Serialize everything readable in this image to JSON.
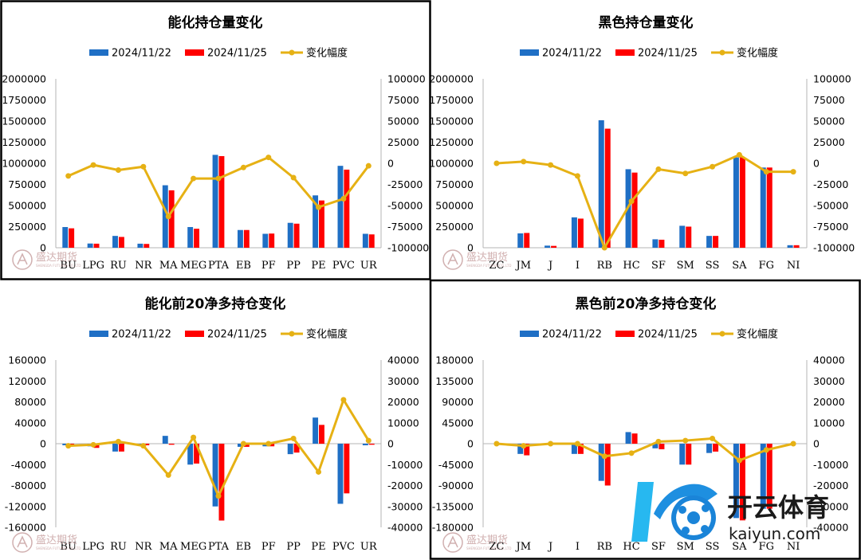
{
  "colors": {
    "series1": "#1f6fc5",
    "series2": "#ff0000",
    "line": "#e6b114"
  },
  "watermark": {
    "text": "盛达期货",
    "sub": "SHENGDA FUTURES CO.,LTD"
  },
  "brand": {
    "name": "开云体育",
    "url": "kaiyun.com"
  },
  "chart_data": [
    {
      "type": "bar",
      "title": "能化持仓量变化",
      "categories": [
        "BU",
        "LPG",
        "RU",
        "NR",
        "MA",
        "MEG",
        "PTA",
        "EB",
        "PF",
        "PP",
        "PE",
        "PVC",
        "UR"
      ],
      "series": [
        {
          "name": "2024/11/22",
          "axis": "left",
          "values": [
            245000,
            50000,
            140000,
            48000,
            740000,
            245000,
            1100000,
            210000,
            165000,
            295000,
            620000,
            970000,
            165000
          ]
        },
        {
          "name": "2024/11/25",
          "axis": "left",
          "values": [
            230000,
            48000,
            128000,
            45000,
            680000,
            225000,
            1085000,
            210000,
            168000,
            285000,
            560000,
            925000,
            158000
          ]
        },
        {
          "name": "变化幅度",
          "axis": "right",
          "type": "line",
          "values": [
            -15000,
            -2000,
            -8000,
            -4000,
            -63000,
            -18000,
            -18000,
            -5000,
            7000,
            -17000,
            -52000,
            -42000,
            -3000
          ]
        }
      ],
      "y_ticks": [
        "2000000",
        "1750000",
        "1500000",
        "1250000",
        "1000000",
        "750000",
        "500000",
        "250000",
        "0"
      ],
      "y2_ticks": [
        "100000",
        "75000",
        "50000",
        "25000",
        "0",
        "-25000",
        "-50000",
        "-75000",
        "-100000"
      ],
      "ylim": [
        0,
        2000000
      ],
      "y2lim": [
        -100000,
        100000
      ],
      "legend": "top"
    },
    {
      "type": "bar",
      "title": "黑色持仓量变化",
      "categories": [
        "ZC",
        "JM",
        "J",
        "I",
        "RB",
        "HC",
        "SF",
        "SM",
        "SS",
        "SA",
        "FG",
        "NI"
      ],
      "series": [
        {
          "name": "2024/11/22",
          "axis": "left",
          "values": [
            0,
            170000,
            25000,
            360000,
            1510000,
            930000,
            100000,
            260000,
            140000,
            1070000,
            950000,
            30000
          ]
        },
        {
          "name": "2024/11/25",
          "axis": "left",
          "values": [
            0,
            175000,
            22000,
            345000,
            1410000,
            890000,
            95000,
            250000,
            140000,
            1070000,
            950000,
            30000
          ]
        },
        {
          "name": "变化幅度",
          "axis": "right",
          "type": "line",
          "values": [
            0,
            2000,
            -2000,
            -15000,
            -100000,
            -45000,
            -7000,
            -12000,
            -4000,
            10000,
            -10000,
            -10000
          ]
        }
      ],
      "y_ticks": [
        "2000000",
        "1750000",
        "1500000",
        "1250000",
        "1000000",
        "750000",
        "500000",
        "250000",
        "0"
      ],
      "y2_ticks": [
        "100000",
        "75000",
        "50000",
        "25000",
        "0",
        "-25000",
        "-50000",
        "-75000",
        "-100000"
      ],
      "ylim": [
        0,
        2000000
      ],
      "y2lim": [
        -100000,
        100000
      ],
      "legend": "top"
    },
    {
      "type": "bar",
      "title": "能化前20净多持仓变化",
      "categories": [
        "BU",
        "LPG",
        "RU",
        "NR",
        "MA",
        "MEG",
        "PTA",
        "EB",
        "PF",
        "PP",
        "PE",
        "PVC",
        "UR"
      ],
      "series": [
        {
          "name": "2024/11/22",
          "axis": "left",
          "values": [
            -3000,
            -5000,
            -15000,
            -3000,
            15000,
            -40000,
            -120000,
            -6000,
            -5000,
            -20000,
            50000,
            -115000,
            -3000
          ]
        },
        {
          "name": "2024/11/25",
          "axis": "left",
          "values": [
            -5000,
            -8000,
            -15000,
            -3000,
            -2000,
            -38000,
            -147000,
            -6000,
            -5000,
            -17000,
            36000,
            -95000,
            -2000
          ]
        },
        {
          "name": "变化幅度",
          "axis": "right",
          "type": "line",
          "values": [
            -1000,
            -500,
            1000,
            -1000,
            -15000,
            3000,
            -25000,
            0,
            0,
            2500,
            -13500,
            21000,
            1500
          ]
        }
      ],
      "y_ticks": [
        "160000",
        "120000",
        "80000",
        "40000",
        "0",
        "-40000",
        "-80000",
        "-120000",
        "-160000"
      ],
      "y2_ticks": [
        "40000",
        "30000",
        "20000",
        "10000",
        "0",
        "-10000",
        "-20000",
        "-30000",
        "-40000"
      ],
      "ylim": [
        -160000,
        160000
      ],
      "y2lim": [
        -40000,
        40000
      ],
      "legend": "top"
    },
    {
      "type": "bar",
      "title": "黑色前20净多持仓变化",
      "categories": [
        "ZC",
        "JM",
        "J",
        "I",
        "RB",
        "HC",
        "SF",
        "SM",
        "SS",
        "SA",
        "FG",
        "NI"
      ],
      "series": [
        {
          "name": "2024/11/22",
          "axis": "left",
          "values": [
            0,
            -22000,
            0,
            -22000,
            -80000,
            25000,
            -10000,
            -45000,
            -20000,
            -160000,
            -140000,
            0
          ]
        },
        {
          "name": "2024/11/25",
          "axis": "left",
          "values": [
            0,
            -25000,
            0,
            -22000,
            -90000,
            22000,
            -12000,
            -45000,
            -17000,
            -165000,
            -140000,
            0
          ]
        },
        {
          "name": "变化幅度",
          "axis": "right",
          "type": "line",
          "values": [
            0,
            -1000,
            0,
            0,
            -6000,
            -4500,
            1000,
            1500,
            2500,
            -8000,
            -3000,
            0
          ]
        }
      ],
      "y_ticks": [
        "180000",
        "135000",
        "90000",
        "45000",
        "0",
        "-45000",
        "-90000",
        "-135000",
        "-180000"
      ],
      "y2_ticks": [
        "40000",
        "30000",
        "20000",
        "10000",
        "0",
        "-10000",
        "-20000",
        "-30000",
        "-40000"
      ],
      "ylim": [
        -180000,
        180000
      ],
      "y2lim": [
        -40000,
        40000
      ],
      "legend": "top"
    }
  ]
}
